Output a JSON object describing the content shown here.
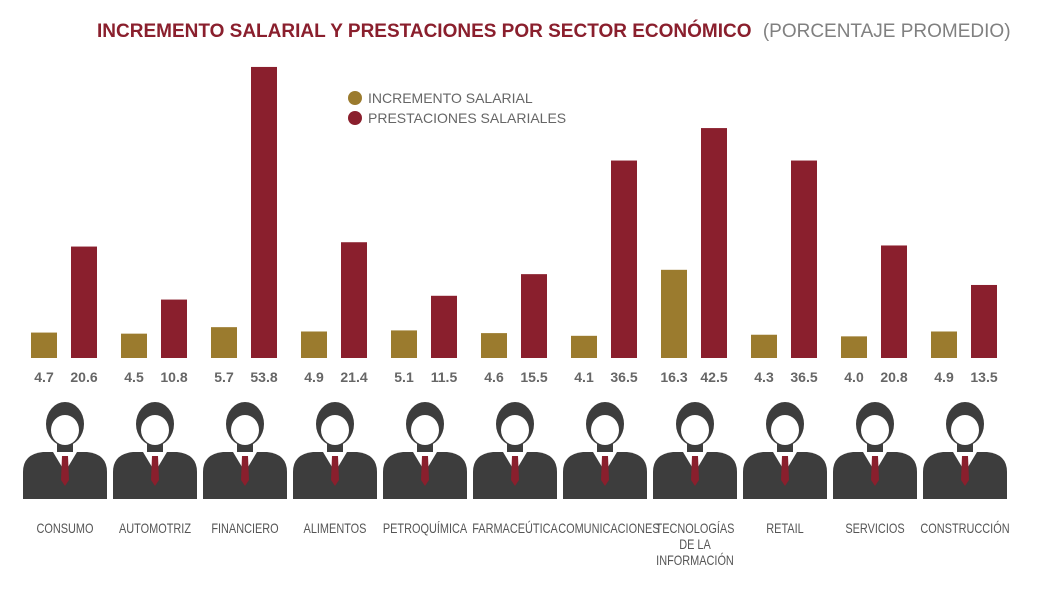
{
  "chart_data": {
    "type": "bar",
    "title": "INCREMENTO SALARIAL Y PRESTACIONES POR SECTOR ECONÓMICO",
    "subtitle": "(PORCENTAJE PROMEDIO)",
    "categories": [
      "CONSUMO",
      "AUTOMOTRIZ",
      "FINANCIERO",
      "ALIMENTOS",
      "PETROQUÍMICA",
      "FARMACEÚTICA",
      "COMUNICACIONES",
      "TECNOLOGÍAS DE LA INFORMACIÓN",
      "RETAIL",
      "SERVICIOS",
      "CONSTRUCCIÓN"
    ],
    "series": [
      {
        "name": "INCREMENTO SALARIAL",
        "color": "#9b7b2e",
        "values": [
          4.7,
          4.5,
          5.7,
          4.9,
          5.1,
          4.6,
          4.1,
          16.3,
          4.3,
          4.0,
          4.9
        ],
        "value_labels": [
          "4.7",
          "4.5",
          "5.7",
          "4.9",
          "5.1",
          "4.6",
          "4.1",
          "16.3",
          "4.3",
          "4.0",
          "4.9"
        ]
      },
      {
        "name": "PRESTACIONES SALARIALES",
        "color": "#8a1f2d",
        "values": [
          20.6,
          10.8,
          53.8,
          21.4,
          11.5,
          15.5,
          36.5,
          42.5,
          36.5,
          20.8,
          13.5
        ],
        "value_labels": [
          "20.6",
          "10.8",
          "53.8",
          "21.4",
          "11.5",
          "15.5",
          "36.5",
          "42.5",
          "36.5",
          "20.8",
          "13.5"
        ]
      }
    ]
  }
}
